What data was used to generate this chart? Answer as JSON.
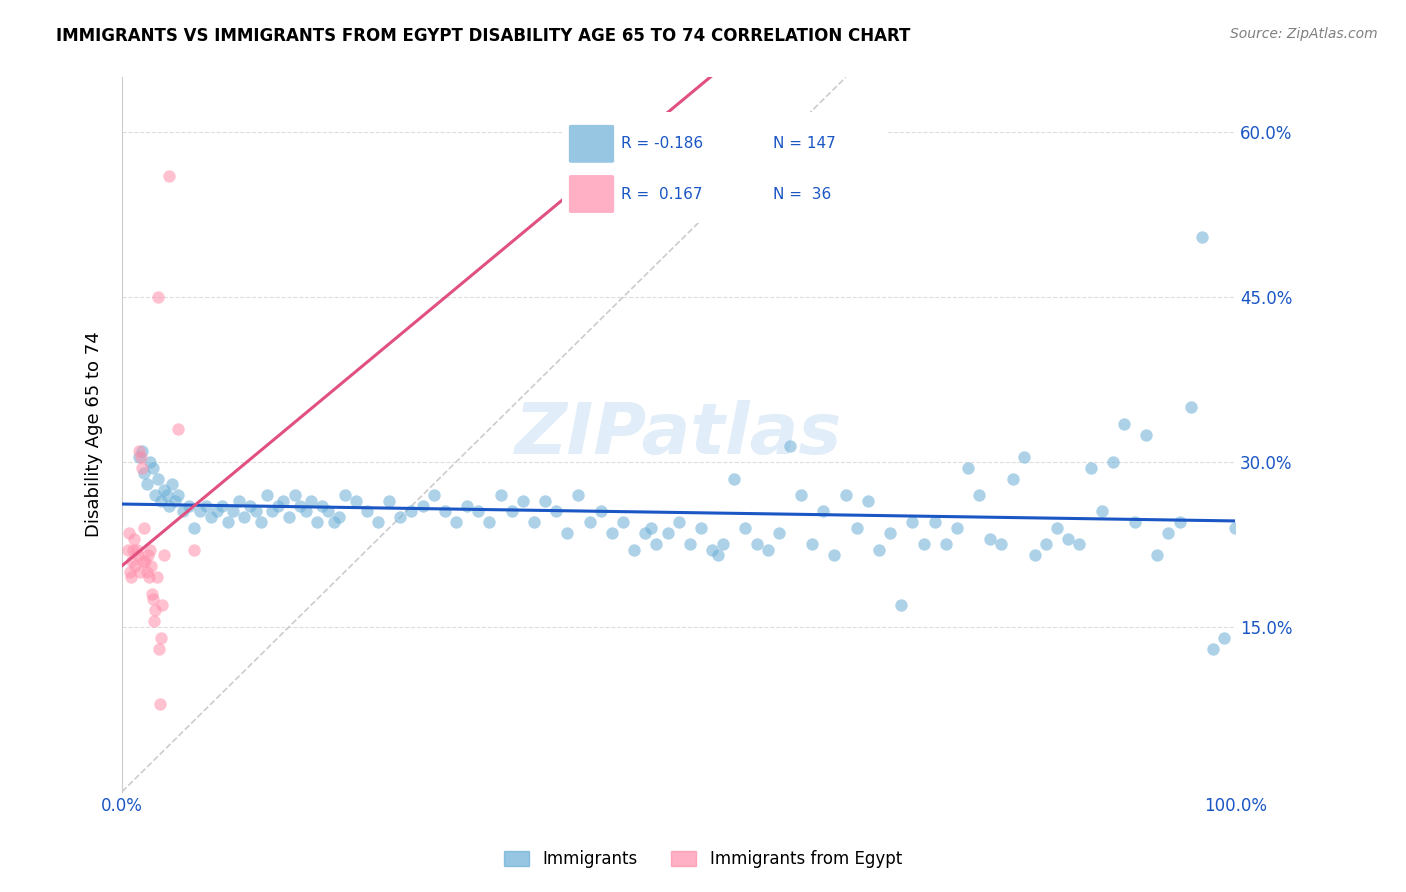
{
  "title": "IMMIGRANTS VS IMMIGRANTS FROM EGYPT DISABILITY AGE 65 TO 74 CORRELATION CHART",
  "source": "Source: ZipAtlas.com",
  "ylabel": "Disability Age 65 to 74",
  "y_ticks": [
    0.0,
    0.15,
    0.3,
    0.45,
    0.6
  ],
  "y_tick_labels": [
    "",
    "15.0%",
    "30.0%",
    "45.0%",
    "60.0%"
  ],
  "x_range": [
    0.0,
    1.0
  ],
  "y_range": [
    0.0,
    0.65
  ],
  "color_blue": "#6BAED6",
  "color_pink": "#FF8FAB",
  "line_color_blue": "#1A56C4",
  "line_color_pink": "#E05080",
  "diagonal_color": "#CCCCCC",
  "watermark": "ZIPatlas",
  "scatter_blue": [
    [
      0.015,
      0.305
    ],
    [
      0.018,
      0.31
    ],
    [
      0.02,
      0.29
    ],
    [
      0.022,
      0.28
    ],
    [
      0.025,
      0.3
    ],
    [
      0.028,
      0.295
    ],
    [
      0.03,
      0.27
    ],
    [
      0.032,
      0.285
    ],
    [
      0.035,
      0.265
    ],
    [
      0.038,
      0.275
    ],
    [
      0.04,
      0.27
    ],
    [
      0.042,
      0.26
    ],
    [
      0.045,
      0.28
    ],
    [
      0.048,
      0.265
    ],
    [
      0.05,
      0.27
    ],
    [
      0.055,
      0.255
    ],
    [
      0.06,
      0.26
    ],
    [
      0.065,
      0.24
    ],
    [
      0.07,
      0.255
    ],
    [
      0.075,
      0.26
    ],
    [
      0.08,
      0.25
    ],
    [
      0.085,
      0.255
    ],
    [
      0.09,
      0.26
    ],
    [
      0.095,
      0.245
    ],
    [
      0.1,
      0.255
    ],
    [
      0.105,
      0.265
    ],
    [
      0.11,
      0.25
    ],
    [
      0.115,
      0.26
    ],
    [
      0.12,
      0.255
    ],
    [
      0.125,
      0.245
    ],
    [
      0.13,
      0.27
    ],
    [
      0.135,
      0.255
    ],
    [
      0.14,
      0.26
    ],
    [
      0.145,
      0.265
    ],
    [
      0.15,
      0.25
    ],
    [
      0.155,
      0.27
    ],
    [
      0.16,
      0.26
    ],
    [
      0.165,
      0.255
    ],
    [
      0.17,
      0.265
    ],
    [
      0.175,
      0.245
    ],
    [
      0.18,
      0.26
    ],
    [
      0.185,
      0.255
    ],
    [
      0.19,
      0.245
    ],
    [
      0.195,
      0.25
    ],
    [
      0.2,
      0.27
    ],
    [
      0.21,
      0.265
    ],
    [
      0.22,
      0.255
    ],
    [
      0.23,
      0.245
    ],
    [
      0.24,
      0.265
    ],
    [
      0.25,
      0.25
    ],
    [
      0.26,
      0.255
    ],
    [
      0.27,
      0.26
    ],
    [
      0.28,
      0.27
    ],
    [
      0.29,
      0.255
    ],
    [
      0.3,
      0.245
    ],
    [
      0.31,
      0.26
    ],
    [
      0.32,
      0.255
    ],
    [
      0.33,
      0.245
    ],
    [
      0.34,
      0.27
    ],
    [
      0.35,
      0.255
    ],
    [
      0.36,
      0.265
    ],
    [
      0.37,
      0.245
    ],
    [
      0.38,
      0.265
    ],
    [
      0.39,
      0.255
    ],
    [
      0.4,
      0.235
    ],
    [
      0.41,
      0.27
    ],
    [
      0.42,
      0.245
    ],
    [
      0.43,
      0.255
    ],
    [
      0.44,
      0.235
    ],
    [
      0.45,
      0.245
    ],
    [
      0.46,
      0.22
    ],
    [
      0.47,
      0.235
    ],
    [
      0.475,
      0.24
    ],
    [
      0.48,
      0.225
    ],
    [
      0.49,
      0.235
    ],
    [
      0.5,
      0.245
    ],
    [
      0.51,
      0.225
    ],
    [
      0.52,
      0.24
    ],
    [
      0.53,
      0.22
    ],
    [
      0.535,
      0.215
    ],
    [
      0.54,
      0.225
    ],
    [
      0.55,
      0.285
    ],
    [
      0.56,
      0.24
    ],
    [
      0.57,
      0.225
    ],
    [
      0.58,
      0.22
    ],
    [
      0.59,
      0.235
    ],
    [
      0.6,
      0.315
    ],
    [
      0.61,
      0.27
    ],
    [
      0.62,
      0.225
    ],
    [
      0.63,
      0.255
    ],
    [
      0.64,
      0.215
    ],
    [
      0.65,
      0.27
    ],
    [
      0.66,
      0.24
    ],
    [
      0.67,
      0.265
    ],
    [
      0.68,
      0.22
    ],
    [
      0.69,
      0.235
    ],
    [
      0.7,
      0.17
    ],
    [
      0.71,
      0.245
    ],
    [
      0.72,
      0.225
    ],
    [
      0.73,
      0.245
    ],
    [
      0.74,
      0.225
    ],
    [
      0.75,
      0.24
    ],
    [
      0.76,
      0.295
    ],
    [
      0.77,
      0.27
    ],
    [
      0.78,
      0.23
    ],
    [
      0.79,
      0.225
    ],
    [
      0.8,
      0.285
    ],
    [
      0.81,
      0.305
    ],
    [
      0.82,
      0.215
    ],
    [
      0.83,
      0.225
    ],
    [
      0.84,
      0.24
    ],
    [
      0.85,
      0.23
    ],
    [
      0.86,
      0.225
    ],
    [
      0.87,
      0.295
    ],
    [
      0.88,
      0.255
    ],
    [
      0.89,
      0.3
    ],
    [
      0.9,
      0.335
    ],
    [
      0.91,
      0.245
    ],
    [
      0.92,
      0.325
    ],
    [
      0.93,
      0.215
    ],
    [
      0.94,
      0.235
    ],
    [
      0.95,
      0.245
    ],
    [
      0.96,
      0.35
    ],
    [
      0.97,
      0.505
    ],
    [
      0.98,
      0.13
    ],
    [
      0.99,
      0.14
    ],
    [
      1.0,
      0.24
    ]
  ],
  "scatter_pink": [
    [
      0.005,
      0.22
    ],
    [
      0.006,
      0.235
    ],
    [
      0.007,
      0.2
    ],
    [
      0.008,
      0.195
    ],
    [
      0.009,
      0.21
    ],
    [
      0.01,
      0.22
    ],
    [
      0.011,
      0.23
    ],
    [
      0.012,
      0.205
    ],
    [
      0.013,
      0.22
    ],
    [
      0.014,
      0.215
    ],
    [
      0.015,
      0.31
    ],
    [
      0.016,
      0.2
    ],
    [
      0.017,
      0.305
    ],
    [
      0.018,
      0.295
    ],
    [
      0.019,
      0.21
    ],
    [
      0.02,
      0.24
    ],
    [
      0.021,
      0.21
    ],
    [
      0.022,
      0.2
    ],
    [
      0.023,
      0.215
    ],
    [
      0.024,
      0.195
    ],
    [
      0.025,
      0.22
    ],
    [
      0.026,
      0.205
    ],
    [
      0.027,
      0.18
    ],
    [
      0.028,
      0.175
    ],
    [
      0.029,
      0.155
    ],
    [
      0.03,
      0.165
    ],
    [
      0.031,
      0.195
    ],
    [
      0.032,
      0.45
    ],
    [
      0.033,
      0.13
    ],
    [
      0.034,
      0.08
    ],
    [
      0.035,
      0.14
    ],
    [
      0.036,
      0.17
    ],
    [
      0.038,
      0.215
    ],
    [
      0.042,
      0.56
    ],
    [
      0.05,
      0.33
    ],
    [
      0.065,
      0.22
    ]
  ]
}
